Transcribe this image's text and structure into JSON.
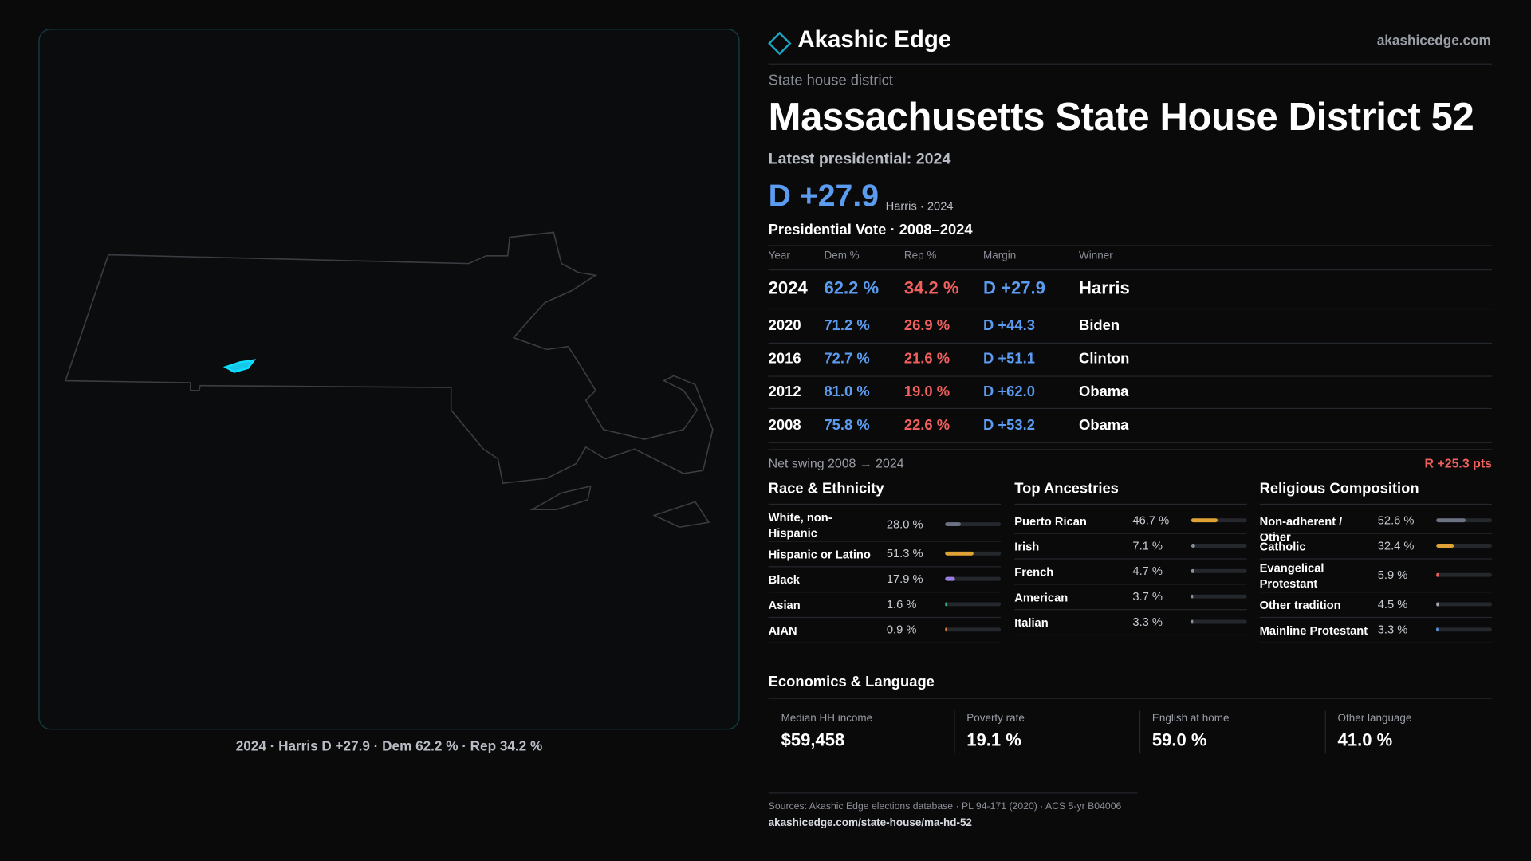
{
  "brand": "Akashic Edge",
  "site": "akashicedge.com",
  "kicker": "State house district",
  "title": "Massachusetts State House District 52",
  "latest_label": "Latest presidential: 2024",
  "headline_margin": "D +27.9",
  "headline_note": "Harris · 2024",
  "map_caption": "2024 · Harris D +27.9 · Dem 62.2 % · Rep 34.2 %",
  "vote_table": {
    "title": "Presidential Vote · 2008–2024",
    "columns": [
      "Year",
      "Dem %",
      "Rep %",
      "Margin",
      "Winner"
    ],
    "rows": [
      [
        "2024",
        "62.2 %",
        "34.2 %",
        "D +27.9",
        "Harris"
      ],
      [
        "2020",
        "71.2 %",
        "26.9 %",
        "D +44.3",
        "Biden"
      ],
      [
        "2016",
        "72.7 %",
        "21.6 %",
        "D +51.1",
        "Clinton"
      ],
      [
        "2012",
        "81.0 %",
        "19.0 %",
        "D +62.0",
        "Obama"
      ],
      [
        "2008",
        "75.8 %",
        "22.6 %",
        "D +53.2",
        "Obama"
      ]
    ]
  },
  "net_swing": {
    "label": "Net swing 2008 → 2024",
    "value": "R +25.3 pts"
  },
  "panels": [
    {
      "title": "Race & Ethnicity",
      "rows": [
        {
          "name": "White, non-Hispanic",
          "value": 28.0,
          "label": "28.0 %",
          "color": "#6b7383"
        },
        {
          "name": "Hispanic or Latino",
          "value": 51.3,
          "label": "51.3 %",
          "color": "#e0a234"
        },
        {
          "name": "Black",
          "value": 17.9,
          "label": "17.9 %",
          "color": "#9a7ee6"
        },
        {
          "name": "Asian",
          "value": 1.6,
          "label": "1.6 %",
          "color": "#3fae86"
        },
        {
          "name": "AIAN",
          "value": 0.9,
          "label": "0.9 %",
          "color": "#e07a3a"
        }
      ]
    },
    {
      "title": "Top Ancestries",
      "rows": [
        {
          "name": "Puerto Rican",
          "value": 46.7,
          "label": "46.7 %",
          "color": "#e0a234"
        },
        {
          "name": "Irish",
          "value": 7.1,
          "label": "7.1 %",
          "color": "#8a909c"
        },
        {
          "name": "French",
          "value": 4.7,
          "label": "4.7 %",
          "color": "#8a909c"
        },
        {
          "name": "American",
          "value": 3.7,
          "label": "3.7 %",
          "color": "#8a909c"
        },
        {
          "name": "Italian",
          "value": 3.3,
          "label": "3.3 %",
          "color": "#8a909c"
        }
      ]
    },
    {
      "title": "Religious Composition",
      "rows": [
        {
          "name": "Non-adherent / Other",
          "value": 52.6,
          "label": "52.6 %",
          "color": "#6b7383"
        },
        {
          "name": "Catholic",
          "value": 32.4,
          "label": "32.4 %",
          "color": "#e0a234"
        },
        {
          "name": "Evangelical Protestant",
          "value": 5.9,
          "label": "5.9 %",
          "color": "#e0605a"
        },
        {
          "name": "Other tradition",
          "value": 4.5,
          "label": "4.5 %",
          "color": "#a0a6b0"
        },
        {
          "name": "Mainline Protestant",
          "value": 3.3,
          "label": "3.3 %",
          "color": "#5b9cf0"
        }
      ]
    }
  ],
  "economics": {
    "title": "Economics & Language",
    "cells": [
      {
        "label": "Median HH income",
        "value": "$59,458"
      },
      {
        "label": "Poverty rate",
        "value": "19.1 %"
      },
      {
        "label": "English at home",
        "value": "59.0 %"
      },
      {
        "label": "Other language",
        "value": "41.0 %"
      }
    ]
  },
  "sources": "Sources: Akashic Edge elections database · PL 94-171 (2020) · ACS 5-yr B04006",
  "url": "akashicedge.com/state-house/ma-hd-52"
}
